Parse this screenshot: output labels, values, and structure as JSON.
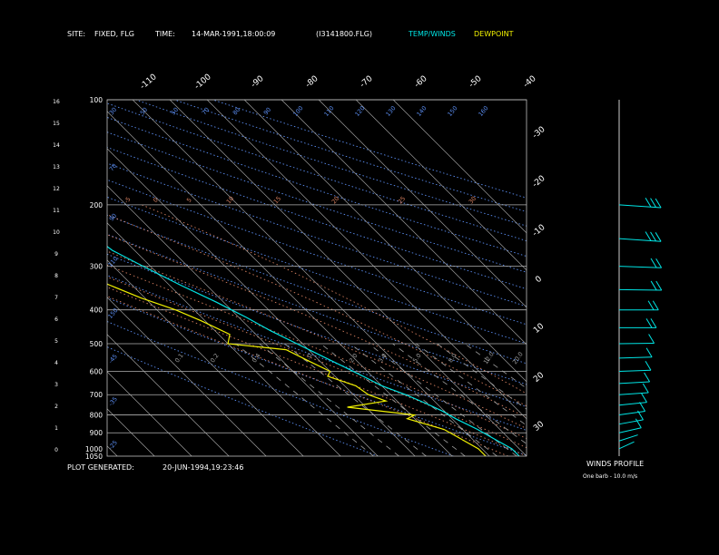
{
  "header": {
    "site_label": "SITE:",
    "site_value": "FIXED, FLG",
    "time_label": "TIME:",
    "time_value": "14-MAR-1991,18:00:09",
    "file": "(I3141800.FLG)",
    "temp_winds": "TEMP/WINDS",
    "dewpoint": "DEWPOINT"
  },
  "footer": {
    "plot_generated_label": "PLOT GENERATED:",
    "plot_generated_value": "20-JUN-1994,19:23:46",
    "winds_profile": "WINDS PROFILE",
    "barb_note": "One barb - 10.0 m/s"
  },
  "colors": {
    "background": "#000000",
    "temperature": "#00e5e5",
    "dewpoint": "#f0f000",
    "isobar": "#b0b0b0",
    "isotherm": "#b0b0b0",
    "dry_adiabat": "#5a8cf0",
    "moist_adiabat": "#d88060",
    "mixing_ratio": "#a0a0a0",
    "wind": "#00e5e5"
  },
  "chart_data": {
    "type": "line",
    "subtype": "skew-T log-P thermodynamic diagram",
    "y_axis": {
      "units": "pressure (mb)",
      "scale": "log",
      "ticks": [
        100,
        200,
        300,
        400,
        500,
        600,
        700,
        800,
        900,
        1000,
        1050
      ]
    },
    "height_axis": {
      "units": "height (km)",
      "ticks": [
        "0",
        "1",
        "2",
        "3",
        "4",
        "5",
        "6",
        "7",
        "8",
        "9",
        "10",
        "11",
        "12",
        "13",
        "14",
        "15",
        "16"
      ]
    },
    "isotherm_labels": [
      "-110",
      "-100",
      "-90",
      "-80",
      "-70",
      "-60",
      "-50",
      "-40",
      "-30",
      "-20",
      "-10",
      "0",
      "10",
      "20",
      "30"
    ],
    "dry_adiabat_labels": [
      "70",
      "90",
      "110",
      "150",
      "-45",
      "-35",
      "-25"
    ],
    "mixing_ratio_labels": [
      "0.1",
      "0.2",
      "0.4",
      "1.0",
      "2.0",
      "3.0",
      "5.0",
      "8.0",
      "12.0",
      "20.0"
    ],
    "top_row_labels": [
      "30",
      "50",
      "50",
      "70",
      "80",
      "90",
      "100",
      "110",
      "120",
      "130",
      "140",
      "150",
      "160"
    ],
    "moist_row_labels": [
      "-5",
      "0",
      "5",
      "10",
      "15",
      "20",
      "25",
      "30"
    ],
    "series": [
      {
        "name": "TEMP/WINDS",
        "points": [
          {
            "p": 1050,
            "t": -2
          },
          {
            "p": 1000,
            "t": -2
          },
          {
            "p": 940,
            "t": -4
          },
          {
            "p": 880,
            "t": -6
          },
          {
            "p": 820,
            "t": -9
          },
          {
            "p": 780,
            "t": -10.5
          },
          {
            "p": 740,
            "t": -13
          },
          {
            "p": 700,
            "t": -16
          },
          {
            "p": 660,
            "t": -20
          },
          {
            "p": 620,
            "t": -22.5
          },
          {
            "p": 590,
            "t": -24.5
          },
          {
            "p": 550,
            "t": -27.5
          },
          {
            "p": 500,
            "t": -31.5
          },
          {
            "p": 460,
            "t": -35
          },
          {
            "p": 420,
            "t": -38
          },
          {
            "p": 380,
            "t": -42
          },
          {
            "p": 340,
            "t": -47
          },
          {
            "p": 300,
            "t": -52
          },
          {
            "p": 270,
            "t": -56
          },
          {
            "p": 250,
            "t": -57
          },
          {
            "p": 240,
            "t": -55
          },
          {
            "p": 230,
            "t": -52
          },
          {
            "p": 220,
            "t": -50
          },
          {
            "p": 210,
            "t": -48
          },
          {
            "p": 200,
            "t": -46
          }
        ]
      },
      {
        "name": "DEWPOINT",
        "points": [
          {
            "p": 1050,
            "t": -11
          },
          {
            "p": 1000,
            "t": -11
          },
          {
            "p": 880,
            "t": -15
          },
          {
            "p": 820,
            "t": -22
          },
          {
            "p": 800,
            "t": -19
          },
          {
            "p": 760,
            "t": -35
          },
          {
            "p": 730,
            "t": -23
          },
          {
            "p": 700,
            "t": -26
          },
          {
            "p": 660,
            "t": -27
          },
          {
            "p": 620,
            "t": -32
          },
          {
            "p": 600,
            "t": -30
          },
          {
            "p": 560,
            "t": -33
          },
          {
            "p": 520,
            "t": -36
          },
          {
            "p": 500,
            "t": -50
          },
          {
            "p": 470,
            "t": -47
          },
          {
            "p": 430,
            "t": -51
          },
          {
            "p": 400,
            "t": -55
          },
          {
            "p": 370,
            "t": -61
          },
          {
            "p": 340,
            "t": -66
          },
          {
            "p": 310,
            "t": -71
          },
          {
            "p": 290,
            "t": -73
          },
          {
            "p": 270,
            "t": -77
          },
          {
            "p": 250,
            "t": -82
          },
          {
            "p": 230,
            "t": -85
          },
          {
            "p": 210,
            "t": -87
          }
        ]
      }
    ],
    "winds": [
      {
        "p": 1000,
        "dir": 220,
        "speed": 8
      },
      {
        "p": 950,
        "dir": 230,
        "speed": 9
      },
      {
        "p": 900,
        "dir": 240,
        "speed": 10
      },
      {
        "p": 850,
        "dir": 245,
        "speed": 11
      },
      {
        "p": 800,
        "dir": 250,
        "speed": 12
      },
      {
        "p": 750,
        "dir": 255,
        "speed": 13
      },
      {
        "p": 700,
        "dir": 260,
        "speed": 14
      },
      {
        "p": 650,
        "dir": 262,
        "speed": 15
      },
      {
        "p": 600,
        "dir": 265,
        "speed": 16
      },
      {
        "p": 550,
        "dir": 265,
        "speed": 17
      },
      {
        "p": 500,
        "dir": 268,
        "speed": 19
      },
      {
        "p": 450,
        "dir": 270,
        "speed": 21
      },
      {
        "p": 400,
        "dir": 270,
        "speed": 23
      },
      {
        "p": 350,
        "dir": 272,
        "speed": 26
      },
      {
        "p": 300,
        "dir": 275,
        "speed": 28
      },
      {
        "p": 250,
        "dir": 280,
        "speed": 32
      },
      {
        "p": 200,
        "dir": 280,
        "speed": 38
      }
    ],
    "legend_position": "top-right",
    "grid": true
  }
}
